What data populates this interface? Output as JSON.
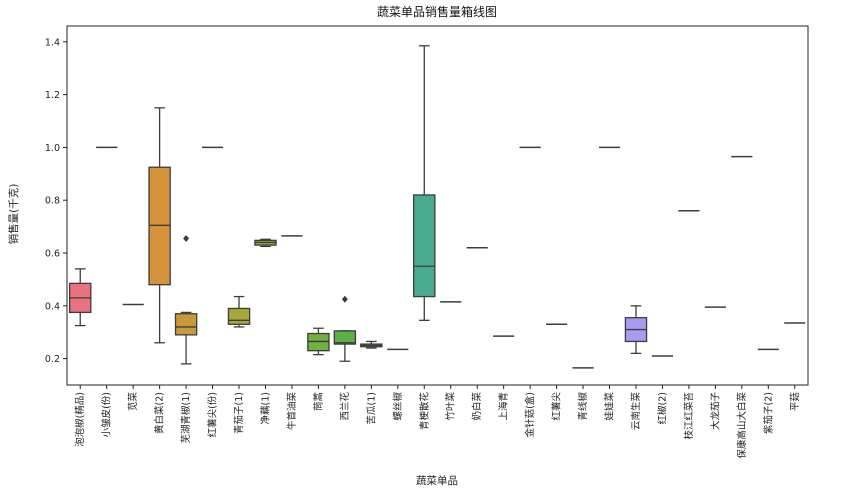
{
  "chart_data": {
    "type": "boxplot",
    "title": "蔬菜单品销售量箱线图",
    "xlabel": "蔬菜单品",
    "ylabel": "销售量(千克)",
    "ylim": [
      0.1,
      1.46
    ],
    "yticks": [
      0.2,
      0.4,
      0.6,
      0.8,
      1.0,
      1.2,
      1.4
    ],
    "ytick_labels": [
      "0.2",
      "0.4",
      "0.6",
      "0.8",
      "1.0",
      "1.2",
      "1.4"
    ],
    "grid": false,
    "categories": [
      {
        "name": "泡泡椒(精品)",
        "min": 0.325,
        "q1": 0.375,
        "median": 0.43,
        "q3": 0.485,
        "max": 0.54,
        "outliers": [],
        "color": "#e8737e"
      },
      {
        "name": "小皱皮(份)",
        "min": 1.0,
        "q1": 1.0,
        "median": 1.0,
        "q3": 1.0,
        "max": 1.0,
        "outliers": [],
        "color": "#e47c4f"
      },
      {
        "name": "苋菜",
        "min": 0.405,
        "q1": 0.405,
        "median": 0.405,
        "q3": 0.405,
        "max": 0.405,
        "outliers": [],
        "color": "#df8a3b"
      },
      {
        "name": "黄白菜(2)",
        "min": 0.26,
        "q1": 0.48,
        "median": 0.705,
        "q3": 0.925,
        "max": 1.15,
        "outliers": [],
        "color": "#d3923b"
      },
      {
        "name": "芜湖青椒(1)",
        "min": 0.18,
        "q1": 0.29,
        "median": 0.32,
        "q3": 0.37,
        "max": 0.375,
        "outliers": [
          0.655
        ],
        "color": "#c69a3a"
      },
      {
        "name": "红薯尖(份)",
        "min": 1.0,
        "q1": 1.0,
        "median": 1.0,
        "q3": 1.0,
        "max": 1.0,
        "outliers": [],
        "color": "#bba23a"
      },
      {
        "name": "青茄子(1)",
        "min": 0.32,
        "q1": 0.33,
        "median": 0.345,
        "q3": 0.39,
        "max": 0.435,
        "outliers": [],
        "color": "#aaa73a"
      },
      {
        "name": "净藕(1)",
        "min": 0.625,
        "q1": 0.63,
        "median": 0.64,
        "q3": 0.648,
        "max": 0.652,
        "outliers": [],
        "color": "#98ab3a"
      },
      {
        "name": "牛首油菜",
        "min": 0.665,
        "q1": 0.665,
        "median": 0.665,
        "q3": 0.665,
        "max": 0.665,
        "outliers": [],
        "color": "#86af3b"
      },
      {
        "name": "茼蒿",
        "min": 0.215,
        "q1": 0.23,
        "median": 0.265,
        "q3": 0.295,
        "max": 0.315,
        "outliers": [],
        "color": "#72b03f"
      },
      {
        "name": "西兰花",
        "min": 0.19,
        "q1": 0.255,
        "median": 0.26,
        "q3": 0.305,
        "max": 0.305,
        "outliers": [
          0.425
        ],
        "color": "#5cb146"
      },
      {
        "name": "苦瓜(1)",
        "min": 0.24,
        "q1": 0.245,
        "median": 0.25,
        "q3": 0.255,
        "max": 0.265,
        "outliers": [],
        "color": "#4eb05e"
      },
      {
        "name": "螺丝椒",
        "min": 0.235,
        "q1": 0.235,
        "median": 0.235,
        "q3": 0.235,
        "max": 0.235,
        "outliers": [],
        "color": "#4caf79"
      },
      {
        "name": "青梗散花",
        "min": 0.345,
        "q1": 0.435,
        "median": 0.55,
        "q3": 0.82,
        "max": 1.385,
        "outliers": [],
        "color": "#4aab91"
      },
      {
        "name": "竹叶菜",
        "min": 0.415,
        "q1": 0.415,
        "median": 0.415,
        "q3": 0.415,
        "max": 0.415,
        "outliers": [],
        "color": "#48a9a0"
      },
      {
        "name": "奶白菜",
        "min": 0.62,
        "q1": 0.62,
        "median": 0.62,
        "q3": 0.62,
        "max": 0.62,
        "outliers": [],
        "color": "#4aa7ad"
      },
      {
        "name": "上海青",
        "min": 0.285,
        "q1": 0.285,
        "median": 0.285,
        "q3": 0.285,
        "max": 0.285,
        "outliers": [],
        "color": "#4ca5b9"
      },
      {
        "name": "金针菇(盒)",
        "min": 1.0,
        "q1": 1.0,
        "median": 1.0,
        "q3": 1.0,
        "max": 1.0,
        "outliers": [],
        "color": "#52a2c6"
      },
      {
        "name": "红薯尖",
        "min": 0.33,
        "q1": 0.33,
        "median": 0.33,
        "q3": 0.33,
        "max": 0.33,
        "outliers": [],
        "color": "#5d9dd3"
      },
      {
        "name": "青线椒",
        "min": 0.165,
        "q1": 0.165,
        "median": 0.165,
        "q3": 0.165,
        "max": 0.165,
        "outliers": [],
        "color": "#7098e0"
      },
      {
        "name": "娃娃菜",
        "min": 1.0,
        "q1": 1.0,
        "median": 1.0,
        "q3": 1.0,
        "max": 1.0,
        "outliers": [],
        "color": "#8e93e6"
      },
      {
        "name": "云南生菜",
        "min": 0.22,
        "q1": 0.265,
        "median": 0.31,
        "q3": 0.355,
        "max": 0.4,
        "outliers": [],
        "color": "#a99cf0"
      },
      {
        "name": "红椒(2)",
        "min": 0.21,
        "q1": 0.21,
        "median": 0.21,
        "q3": 0.21,
        "max": 0.21,
        "outliers": [],
        "color": "#be86e8"
      },
      {
        "name": "枝江红菜苔",
        "min": 0.76,
        "q1": 0.76,
        "median": 0.76,
        "q3": 0.76,
        "max": 0.76,
        "outliers": [],
        "color": "#d17ae0"
      },
      {
        "name": "大龙茄子",
        "min": 0.395,
        "q1": 0.395,
        "median": 0.395,
        "q3": 0.395,
        "max": 0.395,
        "outliers": [],
        "color": "#de77cf"
      },
      {
        "name": "保康高山大白菜",
        "min": 0.965,
        "q1": 0.965,
        "median": 0.965,
        "q3": 0.965,
        "max": 0.965,
        "outliers": [],
        "color": "#e576bd"
      },
      {
        "name": "紫茄子(2)",
        "min": 0.235,
        "q1": 0.235,
        "median": 0.235,
        "q3": 0.235,
        "max": 0.235,
        "outliers": [],
        "color": "#e874a6"
      },
      {
        "name": "平菇",
        "min": 0.335,
        "q1": 0.335,
        "median": 0.335,
        "q3": 0.335,
        "max": 0.335,
        "outliers": [],
        "color": "#ea7390"
      }
    ]
  }
}
